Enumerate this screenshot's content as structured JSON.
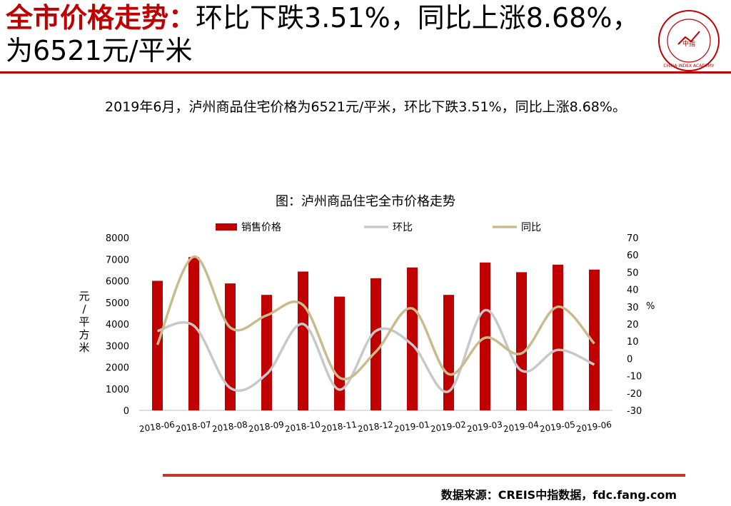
{
  "header": {
    "title_accent": "全市价格走势：",
    "title_rest": "环比下跌3.51%，同比上涨8.68%，为6521元/平米",
    "logo_text": "CHINA INDEX ACADEMY",
    "logo_center": "中指",
    "colors": {
      "accent": "#c00000"
    }
  },
  "summary": "2019年6月，泸州商品住宅价格为6521元/平米，环比下跌3.51%，同比上涨8.68%。",
  "chart_data": {
    "type": "bar+line",
    "title": "图：泸州商品住宅全市价格走势",
    "categories": [
      "2018-06",
      "2018-07",
      "2018-08",
      "2018-09",
      "2018-10",
      "2018-11",
      "2018-12",
      "2019-01",
      "2019-02",
      "2019-03",
      "2019-04",
      "2019-05",
      "2019-06"
    ],
    "series": [
      {
        "name": "销售价格",
        "type": "bar",
        "axis": "left",
        "color": "#c00000",
        "values": [
          6000,
          7100,
          5880,
          5350,
          6430,
          5270,
          6120,
          6620,
          5350,
          6850,
          6400,
          6750,
          6521
        ]
      },
      {
        "name": "环比",
        "type": "line",
        "axis": "right",
        "color": "#c8c8c8",
        "values": [
          16,
          19,
          -17,
          -9,
          20,
          -18,
          16,
          8,
          -19,
          28,
          -7,
          5,
          -3.51
        ]
      },
      {
        "name": "同比",
        "type": "line",
        "axis": "right",
        "color": "#c9bb8e",
        "values": [
          8,
          59,
          18,
          25,
          31,
          -11,
          4,
          29,
          -9,
          12,
          3,
          30,
          8.68
        ]
      }
    ],
    "left_axis": {
      "label": "元/平方米",
      "min": 0,
      "max": 8000,
      "ticks": [
        "0",
        "1000",
        "2000",
        "3000",
        "4000",
        "5000",
        "6000",
        "7000",
        "8000"
      ]
    },
    "right_axis": {
      "label": "%",
      "min": -30,
      "max": 70,
      "ticks": [
        "-30",
        "-20",
        "-10",
        "0",
        "10",
        "20",
        "30",
        "40",
        "50",
        "60",
        "70"
      ]
    },
    "legend_position": "top"
  },
  "footer": {
    "source": "数据来源：CREIS中指数据，fdc.fang.com"
  }
}
